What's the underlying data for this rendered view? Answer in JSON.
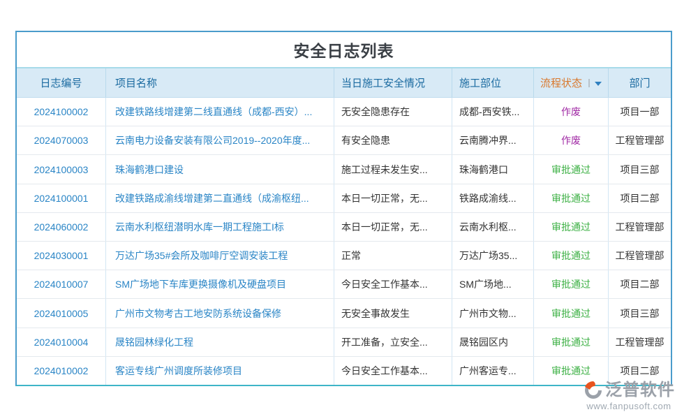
{
  "page": {
    "title": "安全日志列表"
  },
  "table": {
    "columns": [
      {
        "key": "log_no",
        "label": "日志编号"
      },
      {
        "key": "project",
        "label": "项目名称"
      },
      {
        "key": "safety",
        "label": "当日施工安全情况"
      },
      {
        "key": "location",
        "label": "施工部位"
      },
      {
        "key": "status",
        "label": "流程状态",
        "sortable": true,
        "accent": "#d9772b"
      },
      {
        "key": "dept",
        "label": "部门"
      }
    ],
    "rows": [
      [
        "2024100002",
        "改建铁路线增建第二线直通线（成都-西安）...",
        "无安全隐患存在",
        "成都-西安铁...",
        "作废",
        "项目一部"
      ],
      [
        "2024070003",
        "云南电力设备安装有限公司2019--2020年度...",
        "有安全隐患",
        "云南腾冲界...",
        "作废",
        "工程管理部"
      ],
      [
        "2024100003",
        "珠海鹤港口建设",
        "施工过程未发生安...",
        "珠海鹤港口",
        "审批通过",
        "项目三部"
      ],
      [
        "2024100001",
        "改建铁路成渝线增建第二直通线（成渝枢纽...",
        "本日一切正常，无...",
        "铁路成渝线...",
        "审批通过",
        "项目二部"
      ],
      [
        "2024060002",
        "云南水利枢纽潜明水库一期工程施工I标",
        "本日一切正常，无...",
        "云南水利枢...",
        "审批通过",
        "工程管理部"
      ],
      [
        "2024030001",
        "万达广场35#会所及咖啡厅空调安装工程",
        "正常",
        "万达广场35...",
        "审批通过",
        "工程管理部"
      ],
      [
        "2024010007",
        "SM广场地下车库更换摄像机及硬盘项目",
        "今日安全工作基本...",
        "SM广场地...",
        "审批通过",
        "项目二部"
      ],
      [
        "2024010005",
        "广州市文物考古工地安防系统设备保修",
        "无安全事故发生",
        "广州市文物...",
        "审批通过",
        "项目三部"
      ],
      [
        "2024010004",
        "晟铭园林绿化工程",
        "开工准备，立安全...",
        "晟铭园区内",
        "审批通过",
        "工程管理部"
      ],
      [
        "2024010002",
        "客运专线广州调度所装修项目",
        "今日安全工作基本...",
        "广州客运专...",
        "审批通过",
        "项目二部"
      ]
    ]
  },
  "status_colors": {
    "作废": "#a12ba5",
    "审批通过": "#3cb044"
  },
  "colors": {
    "link": "#2a85c6",
    "header_text": "#1a6aa0",
    "header_bg": "#d8eaf6",
    "border_blue": "#4a9ccb",
    "border_teal": "#3eb5c8"
  },
  "watermark": {
    "brand": "泛普软件",
    "url": "www.fanpusoft.com"
  }
}
